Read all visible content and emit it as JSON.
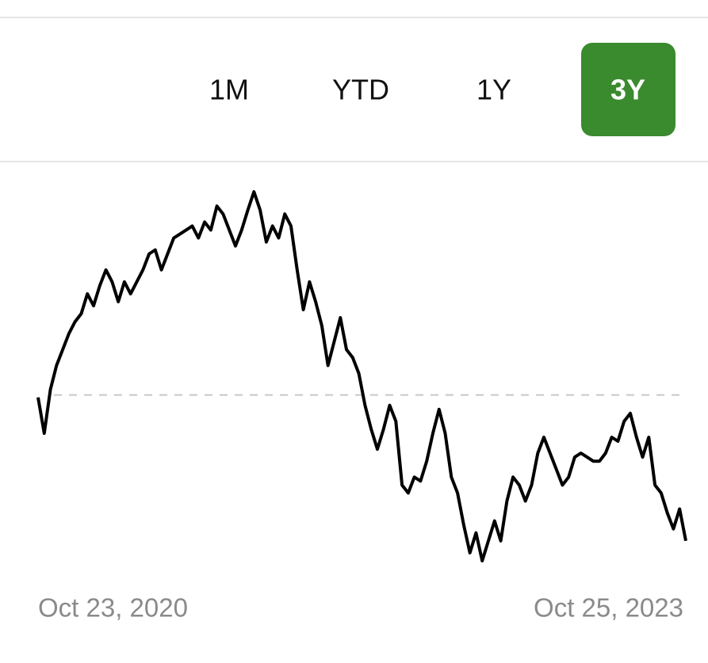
{
  "ranges": [
    "1M",
    "YTD",
    "1Y",
    "3Y"
  ],
  "selected": "3Y",
  "chart_data": {
    "type": "line",
    "color": "#000000",
    "reference_line": 100,
    "x_start_label": "Oct 23, 2020",
    "x_end_label": "Oct 25, 2023",
    "ylim": [
      57,
      153
    ],
    "values": [
      99.4,
      90.4,
      101.4,
      107.4,
      111.4,
      115.4,
      118.4,
      120.4,
      125.4,
      122.4,
      127.4,
      131.4,
      128.4,
      123.4,
      128.4,
      125.4,
      128.4,
      131.4,
      135.4,
      136.4,
      131.4,
      135.4,
      139.4,
      140.4,
      141.4,
      142.4,
      139.4,
      143.4,
      141.4,
      147.4,
      145.4,
      141.4,
      137.4,
      141.4,
      146.4,
      151,
      146.4,
      138.4,
      142.4,
      139.4,
      145.4,
      142.4,
      131.4,
      121.4,
      128.4,
      123.4,
      117.4,
      107.4,
      113.4,
      119.4,
      111.4,
      109.4,
      105.4,
      97.4,
      91.4,
      86.4,
      91.4,
      97.4,
      93.4,
      77.4,
      75.4,
      79.4,
      78.4,
      83.4,
      90.4,
      96.4,
      90.4,
      79.4,
      75.4,
      67.4,
      60.4,
      65.4,
      58.4,
      63.4,
      68.4,
      63.4,
      73.4,
      79.4,
      77.4,
      73.4,
      77.4,
      85.4,
      89.4,
      85.4,
      81.4,
      77.4,
      79.4,
      84.4,
      85.4,
      84.4,
      83.4,
      83.4,
      85.4,
      89.4,
      88.4,
      93.4,
      95.4,
      89.4,
      84.4,
      89.4,
      77.4,
      75.4,
      70.4,
      66.4,
      71.4,
      63.4
    ]
  }
}
